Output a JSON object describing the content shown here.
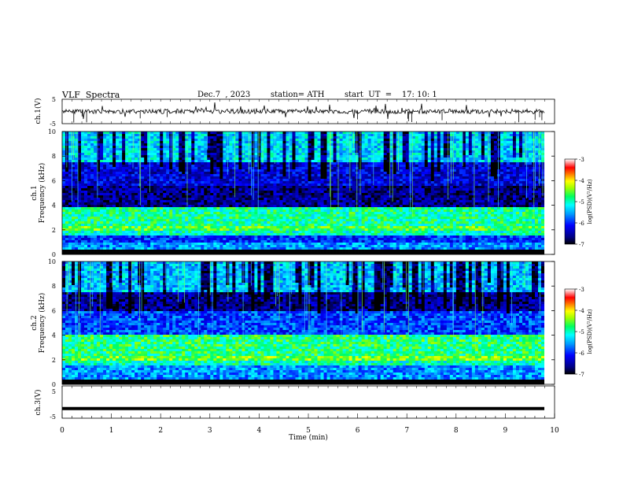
{
  "header": {
    "title": "VLF  Spectra",
    "date": "Dec.7  , 2023",
    "station": "station= ATH",
    "start": "start  UT  =    17: 10: 1"
  },
  "chart_data": [
    {
      "type": "line",
      "panel": "ch1-waveform",
      "ylabel": "ch.1(V)",
      "ylim": [
        -5,
        5
      ],
      "yticks": [
        "5",
        "-5"
      ],
      "xlim": [
        0,
        9.8
      ],
      "series_color": "#000000"
    },
    {
      "type": "heatmap",
      "panel": "ch1-spectrogram",
      "ylabel": "ch.1\nFrequency (kHz)",
      "ylim": [
        0,
        10
      ],
      "yticks": [
        "0",
        "2",
        "4",
        "6",
        "8",
        "10"
      ],
      "xlim": [
        0,
        9.8
      ],
      "colorbar": {
        "label": "log(PSD)(V²/Hz)",
        "ticks": [
          "-3",
          "-4",
          "-5",
          "-6",
          "-7"
        ],
        "range": [
          -7,
          -3
        ]
      },
      "bands": [
        {
          "from_khz": 0.0,
          "to_khz": 0.3,
          "level": -7.0
        },
        {
          "from_khz": 0.3,
          "to_khz": 1.0,
          "level": -5.6
        },
        {
          "from_khz": 1.0,
          "to_khz": 1.5,
          "level": -6.0
        },
        {
          "from_khz": 1.5,
          "to_khz": 2.0,
          "level": -5.0
        },
        {
          "from_khz": 2.0,
          "to_khz": 2.3,
          "level": -4.6
        },
        {
          "from_khz": 2.3,
          "to_khz": 3.8,
          "level": -4.9
        },
        {
          "from_khz": 3.8,
          "to_khz": 5.5,
          "level": -6.6
        },
        {
          "from_khz": 5.5,
          "to_khz": 7.5,
          "level": -6.3
        },
        {
          "from_khz": 7.5,
          "to_khz": 10.0,
          "level": -5.3
        }
      ]
    },
    {
      "type": "heatmap",
      "panel": "ch2-spectrogram",
      "ylabel": "ch.2\nFrequency (kHz)",
      "ylim": [
        0,
        10
      ],
      "yticks": [
        "0",
        "2",
        "4",
        "6",
        "8",
        "10"
      ],
      "xlim": [
        0,
        9.8
      ],
      "colorbar": {
        "label": "log(PSD)(V²/Hz)",
        "ticks": [
          "-3",
          "-4",
          "-5",
          "-6",
          "-7"
        ],
        "range": [
          -7,
          -3
        ]
      },
      "bands": [
        {
          "from_khz": 0.0,
          "to_khz": 0.3,
          "level": -7.0
        },
        {
          "from_khz": 0.3,
          "to_khz": 1.5,
          "level": -5.6
        },
        {
          "from_khz": 1.5,
          "to_khz": 2.0,
          "level": -5.0
        },
        {
          "from_khz": 2.0,
          "to_khz": 2.3,
          "level": -4.5
        },
        {
          "from_khz": 2.3,
          "to_khz": 4.0,
          "level": -4.8
        },
        {
          "from_khz": 4.0,
          "to_khz": 6.0,
          "level": -5.9
        },
        {
          "from_khz": 6.0,
          "to_khz": 7.5,
          "level": -6.6
        },
        {
          "from_khz": 7.5,
          "to_khz": 10.0,
          "level": -5.4
        }
      ]
    },
    {
      "type": "line",
      "panel": "ch3-waveform",
      "ylabel": "ch.3(V)",
      "ylim": [
        -5,
        5
      ],
      "yticks": [
        "5",
        "-5"
      ],
      "xlim": [
        0,
        9.8
      ],
      "xlabel": "Time  (min)",
      "xticks": [
        "0",
        "1",
        "2",
        "3",
        "4",
        "5",
        "6",
        "7",
        "8",
        "9",
        "10"
      ],
      "trace_level": -2,
      "series_color": "#000000"
    }
  ]
}
